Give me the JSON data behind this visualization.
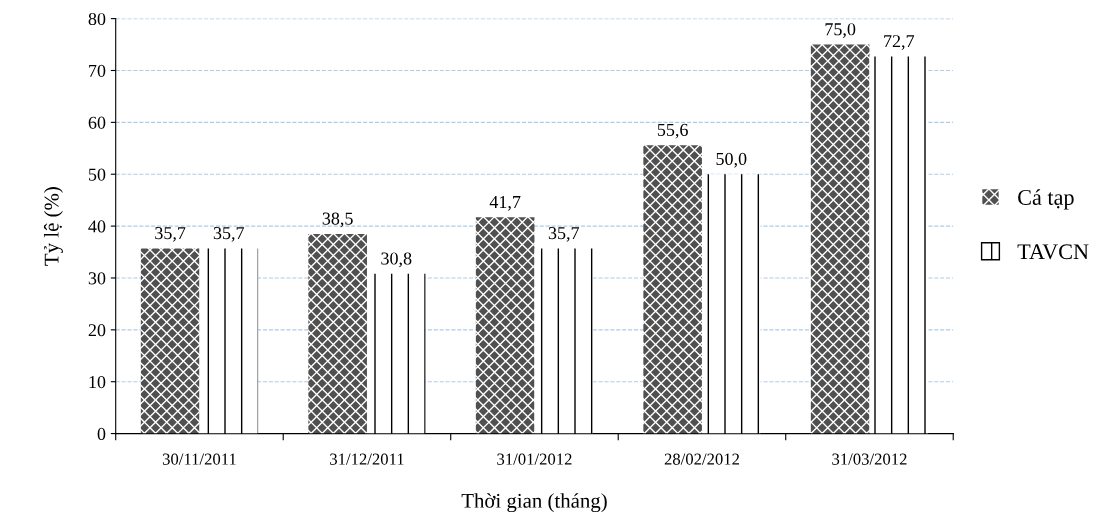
{
  "chart_data": {
    "type": "bar",
    "xlabel": "Thời gian (tháng)",
    "ylabel": "Tỷ lệ (%)",
    "categories": [
      "30/11/2011",
      "31/12/2011",
      "31/01/2012",
      "28/02/2012",
      "31/03/2012"
    ],
    "series": [
      {
        "name": "Cá tạp",
        "color": "#505050",
        "values": [
          35.7,
          38.5,
          41.7,
          55.6,
          75.0
        ],
        "value_labels": [
          "35,7",
          "38,5",
          "41,7",
          "55,6",
          "75,0"
        ]
      },
      {
        "name": "TAVCN",
        "color": "#ffffff",
        "values": [
          35.7,
          30.8,
          35.7,
          50.0,
          72.7
        ],
        "value_labels": [
          "35,7",
          "30,8",
          "35,7",
          "50,0",
          "72,7"
        ]
      }
    ],
    "ylim": [
      0,
      80
    ],
    "yticks": [
      0,
      10,
      20,
      30,
      40,
      50,
      60,
      70,
      80
    ],
    "grid": "y",
    "legend": "right"
  }
}
